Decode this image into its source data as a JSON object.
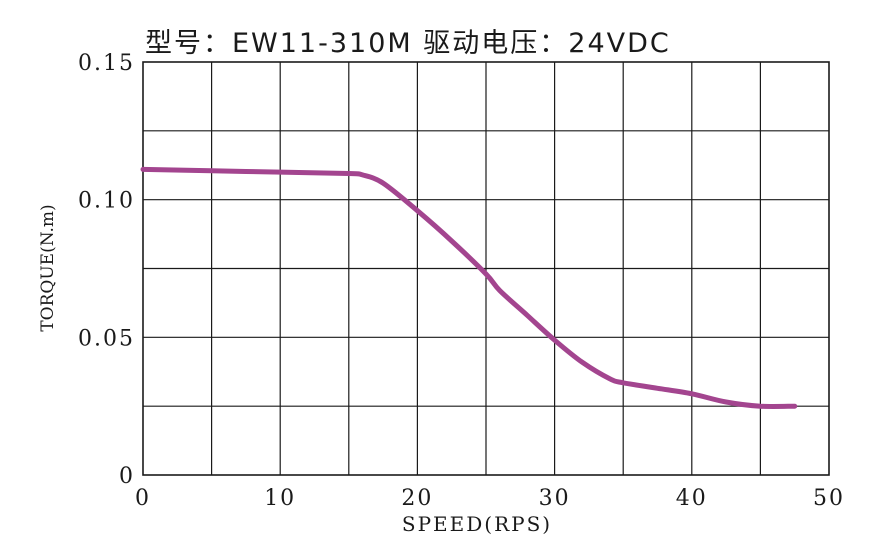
{
  "chart_data": {
    "type": "line",
    "title": "型号：EW11-310M   驱动电压：24VDC",
    "xlabel": "SPEED(RPS)",
    "ylabel": "TORQUE(N.m)",
    "xlim": [
      0,
      50
    ],
    "ylim": [
      0,
      0.15
    ],
    "x_ticks": [
      0,
      10,
      20,
      30,
      40,
      50
    ],
    "x_tick_labels": [
      "0",
      "10",
      "20",
      "30",
      "40",
      "50"
    ],
    "y_ticks": [
      0,
      0.05,
      0.1,
      0.15
    ],
    "y_tick_labels": [
      "0",
      "0.05",
      "0.10",
      "0.15"
    ],
    "x_grid_step": 5,
    "y_grid_step": 0.025,
    "grid": true,
    "legend": "none",
    "color": "#a3458f",
    "series": [
      {
        "x": [
          0,
          5,
          10,
          15,
          16,
          17.5,
          20,
          22.5,
          25,
          26,
          28,
          30,
          32,
          34,
          35,
          37.5,
          40,
          42.5,
          45,
          47.5
        ],
        "y": [
          0.111,
          0.1105,
          0.11,
          0.1095,
          0.109,
          0.106,
          0.096,
          0.085,
          0.073,
          0.067,
          0.058,
          0.049,
          0.041,
          0.035,
          0.0335,
          0.0315,
          0.0295,
          0.0265,
          0.025,
          0.025
        ]
      }
    ]
  }
}
